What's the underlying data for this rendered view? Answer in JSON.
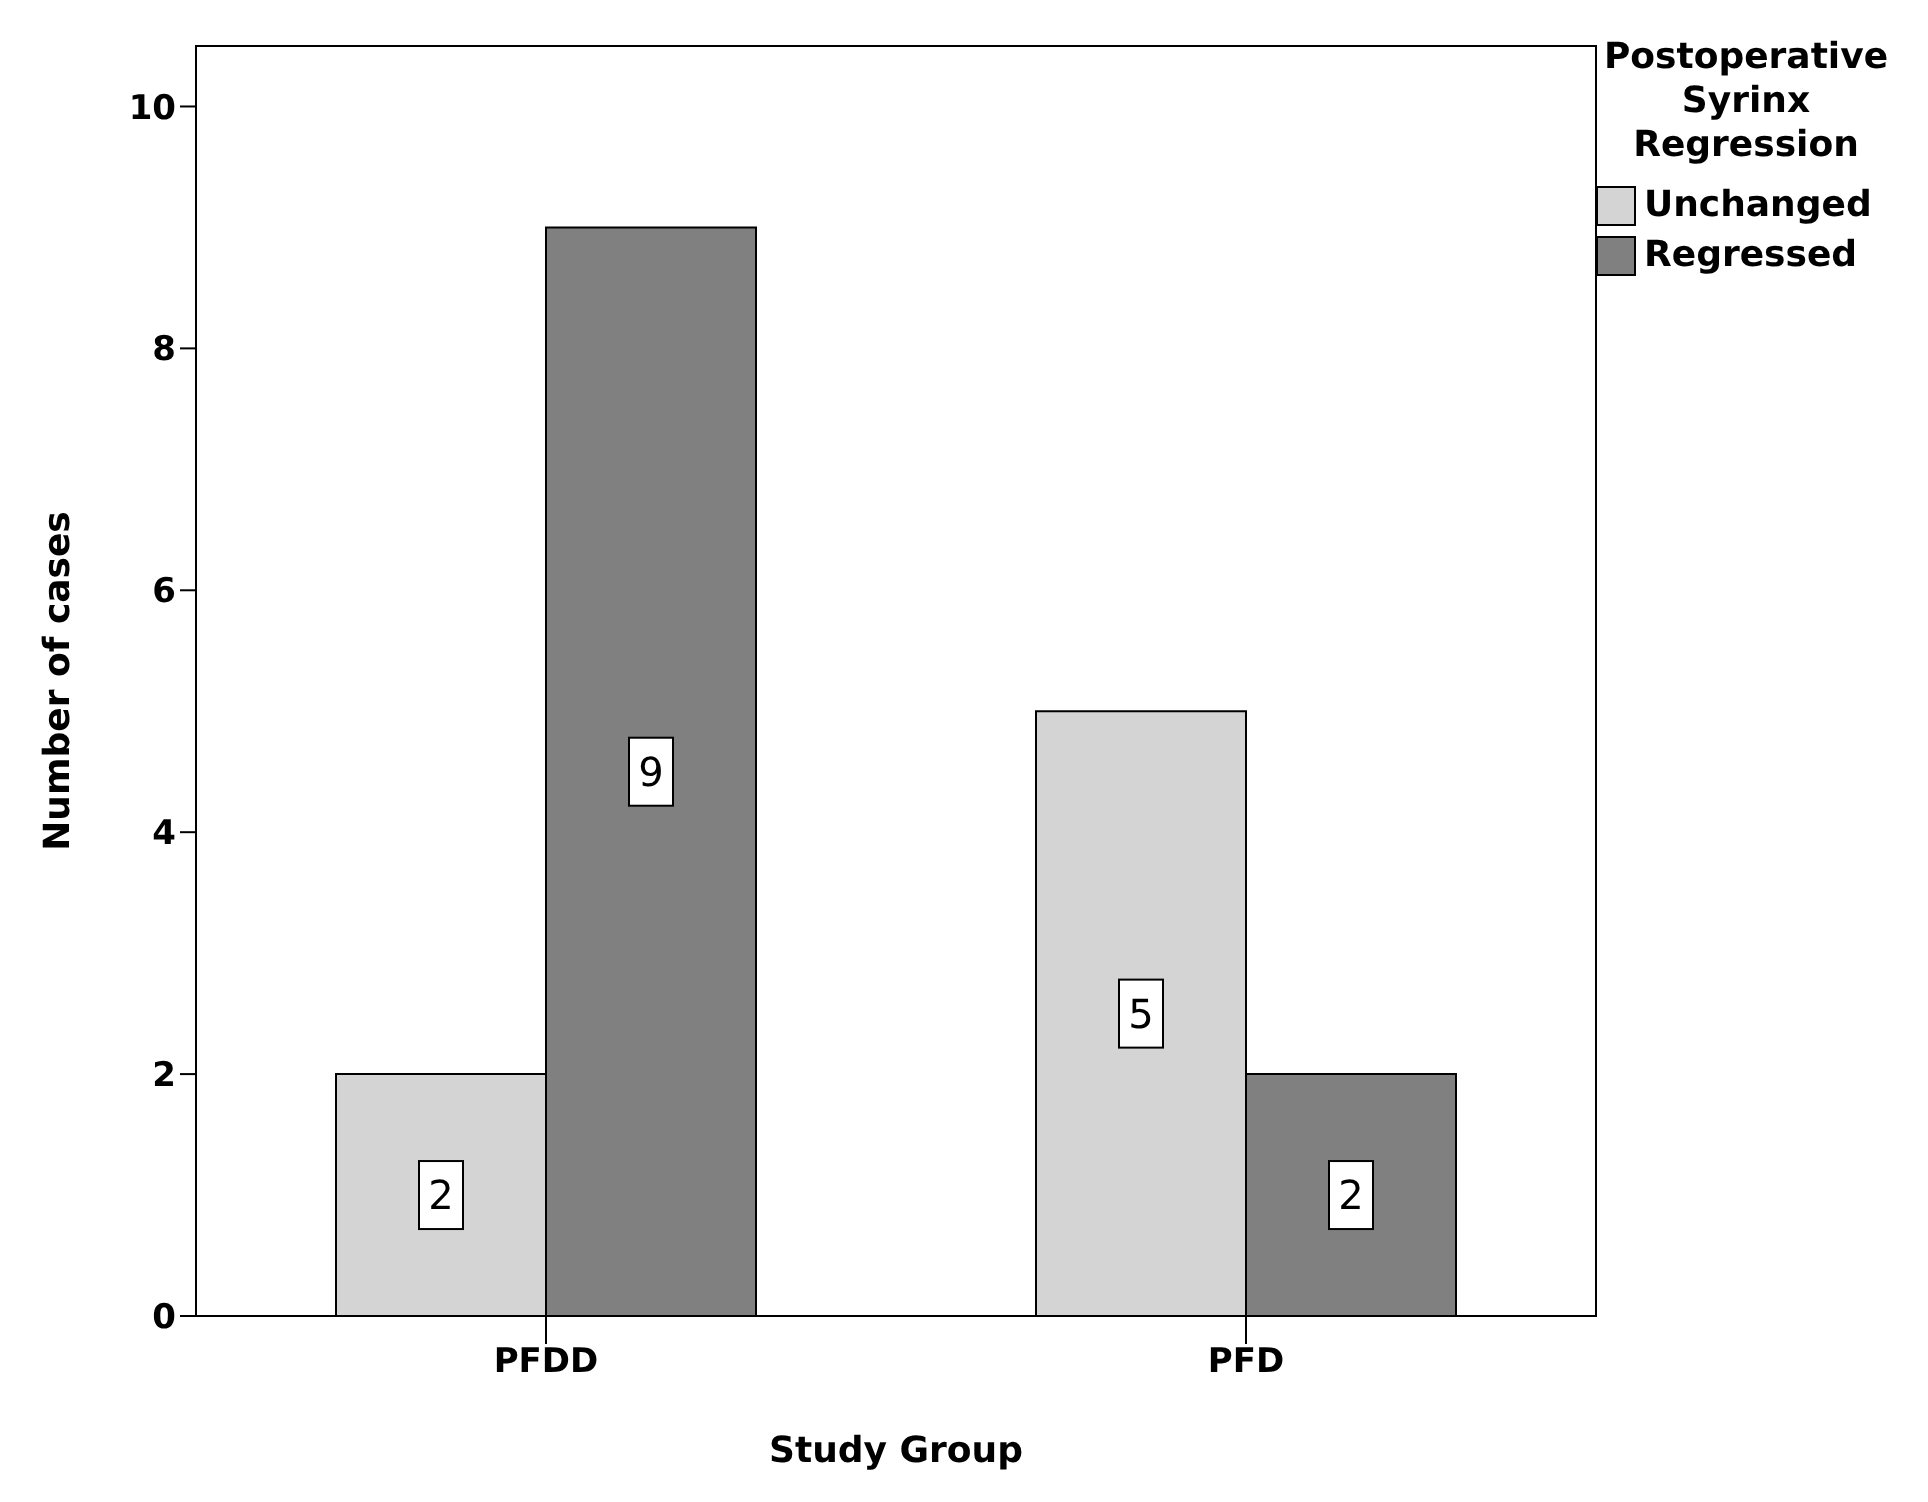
{
  "chart_data": {
    "type": "bar",
    "xlabel": "Study Group",
    "ylabel": "Number of cases",
    "legend_title": "Postoperative Syrinx Regression",
    "categories": [
      "PFDD",
      "PFD"
    ],
    "series": [
      {
        "name": "Unchanged",
        "color": "#d4d4d4",
        "values": [
          2,
          5
        ]
      },
      {
        "name": "Regressed",
        "color": "#808080",
        "values": [
          9,
          2
        ]
      }
    ],
    "ylim": [
      0,
      10.5
    ],
    "yticks": [
      0,
      2,
      4,
      6,
      8,
      10
    ],
    "grid": false,
    "legend": "right",
    "data_labels": true
  }
}
